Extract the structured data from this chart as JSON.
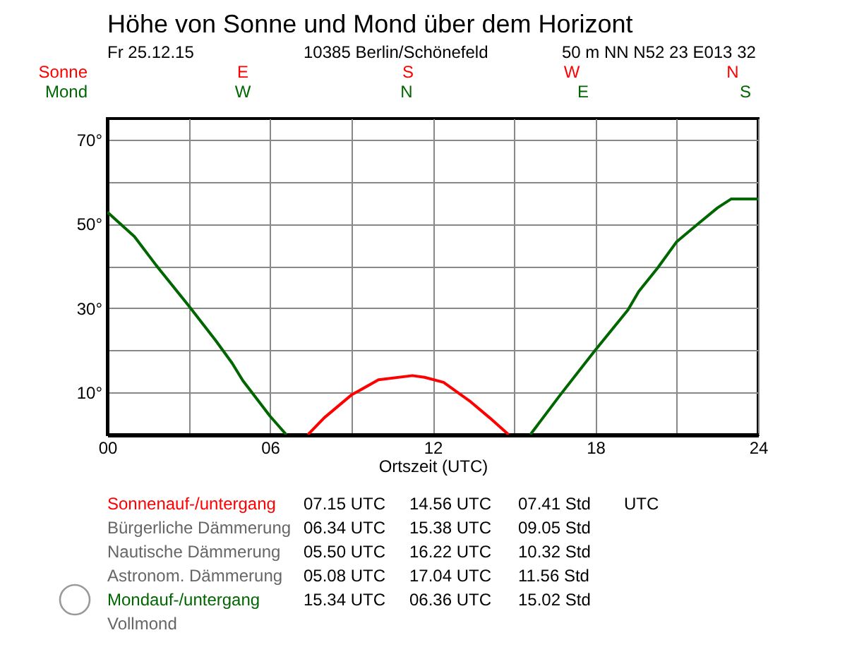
{
  "chart_data": {
    "type": "line",
    "title": "Höhe von Sonne und Mond über dem Horizont",
    "xlabel": "Ortszeit (UTC)",
    "xlim": [
      0,
      24
    ],
    "xticks": [
      {
        "value": 0,
        "label": "00"
      },
      {
        "value": 3,
        "label": null
      },
      {
        "value": 6,
        "label": "06"
      },
      {
        "value": 9,
        "label": null
      },
      {
        "value": 12,
        "label": "12"
      },
      {
        "value": 15,
        "label": null
      },
      {
        "value": 18,
        "label": "18"
      },
      {
        "value": 21,
        "label": null
      },
      {
        "value": 24,
        "label": "24"
      }
    ],
    "ylim": [
      0,
      75
    ],
    "yticks": [
      {
        "value": 10,
        "label": "10°"
      },
      {
        "value": 20,
        "label": null
      },
      {
        "value": 30,
        "label": "30°"
      },
      {
        "value": 40,
        "label": null
      },
      {
        "value": 50,
        "label": "50°"
      },
      {
        "value": 60,
        "label": null
      },
      {
        "value": 70,
        "label": "70°"
      }
    ],
    "grid": true,
    "line_style": "solid",
    "series": [
      {
        "name": "Sonne",
        "color": "#ff0000",
        "x": [
          7.4,
          8,
          9,
          10,
          11.25,
          11.7,
          12.4,
          13.4,
          14.1,
          14.8
        ],
        "values": [
          0,
          4,
          9.4,
          13,
          14,
          13.6,
          12.4,
          7.8,
          4,
          0
        ]
      },
      {
        "name": "Mond",
        "color": "#006600",
        "x": [
          0,
          1,
          1.8,
          2,
          3,
          4,
          4.6,
          5,
          6,
          6.6,
          11,
          15.6,
          16.7,
          18,
          19.2,
          19.6,
          20.3,
          21,
          21.8,
          22.5,
          23,
          24
        ],
        "values": [
          52.8,
          47,
          40.2,
          38.6,
          30.6,
          22.3,
          17,
          12.8,
          4.4,
          0,
          null,
          0,
          9.4,
          20.1,
          29.6,
          34,
          39.6,
          45.8,
          50.1,
          53.8,
          55.9,
          55.9
        ]
      }
    ],
    "annotations": [
      "Fr 25.12.15",
      "10385 Berlin/Schönefeld",
      "50 m NN N52 23 E013 32",
      "E",
      "S",
      "W",
      "N",
      "W",
      "N",
      "E",
      "S",
      "Sonnenauf-/untergang  07.15 UTC  14.56 UTC  07.41 Std  UTC",
      "Bürgerliche Dämmerung  06.34 UTC  15.38 UTC  09.05 Std",
      "Nautische Dämmerung  05.50 UTC  16.22 UTC  10.32 Std",
      "Astronom. Dämmerung  05.08 UTC  17.04 UTC  11.56 Std",
      "Mondauf-/untergang  15.34 UTC  06.36 UTC  15.02 Std",
      "Vollmond"
    ]
  }
}
